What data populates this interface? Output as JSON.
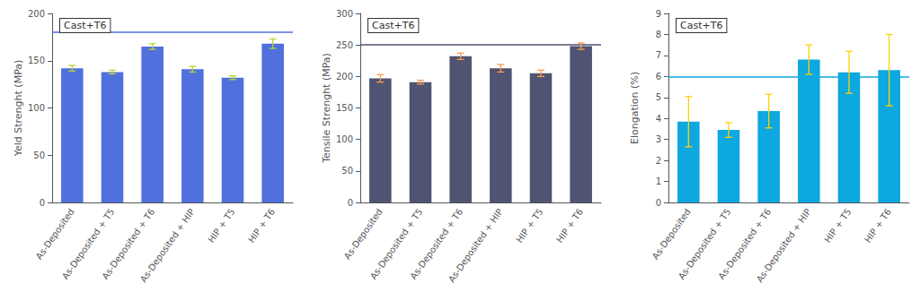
{
  "chart_data": [
    {
      "type": "bar",
      "categories": [
        "As-Deposited",
        "As-Deposited + T5",
        "As-Deposited + T6",
        "As-Deposited + HIP",
        "HIP + T5",
        "HIP + T6"
      ],
      "values": [
        142,
        138,
        165,
        141,
        132,
        168
      ],
      "errors": [
        3,
        2,
        3,
        3,
        2,
        5
      ],
      "ylabel": "Yeld Strenght (MPa)",
      "ylim": [
        0,
        200
      ],
      "yticks": [
        0,
        50,
        100,
        150,
        200
      ],
      "ref_line": 180,
      "annotation": "Cast+T6",
      "grid": false
    },
    {
      "type": "bar",
      "categories": [
        "As-Deposited",
        "As-Deposited + T5",
        "As-Deposited + T6",
        "As-Deposited + HIP",
        "HIP + T5",
        "HIP + T6"
      ],
      "values": [
        197,
        191,
        232,
        213,
        205,
        248
      ],
      "errors": [
        6,
        3,
        5,
        6,
        5,
        5
      ],
      "ylabel": "Tensile Strenght (MPa)",
      "ylim": [
        0,
        300
      ],
      "yticks": [
        0,
        50,
        100,
        150,
        200,
        250,
        300
      ],
      "ref_line": 250,
      "annotation": "Cast+T6",
      "grid": false
    },
    {
      "type": "bar",
      "categories": [
        "As-Deposited",
        "As-Deposited + T5",
        "As-Deposited + T6",
        "As-Deposited + HIP",
        "HIP + T5",
        "HIP + T6"
      ],
      "values": [
        3.85,
        3.45,
        4.35,
        6.8,
        6.2,
        6.3
      ],
      "errors": [
        1.2,
        0.35,
        0.8,
        0.7,
        1.0,
        1.7
      ],
      "ylabel": "Elongation (%)",
      "ylim": [
        0,
        9
      ],
      "yticks": [
        0,
        1,
        2,
        3,
        4,
        5,
        6,
        7,
        8,
        9
      ],
      "ref_line": 6.0,
      "annotation": "Cast+T6",
      "grid": false
    }
  ]
}
